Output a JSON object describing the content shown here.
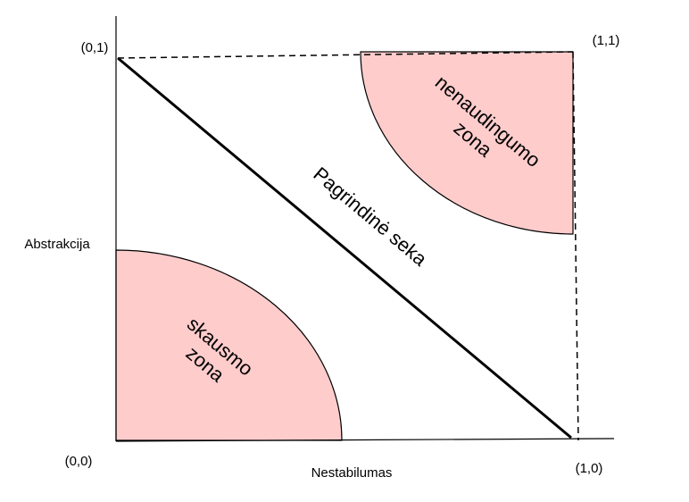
{
  "diagram": {
    "corner_labels": {
      "origin": "(0,0)",
      "top_left": "(0,1)",
      "top_right": "(1,1)",
      "bottom_right": "(1,0)"
    },
    "x_axis_label": "Nestabilumas",
    "y_axis_label": "Abstrakcija",
    "main_sequence_label": "Pagrindinė seka",
    "zone_of_uselessness": {
      "line1": "nenaudingumo",
      "line2": "zona"
    },
    "zone_of_pain": {
      "line1": "skausmo",
      "line2": "zona"
    },
    "colors": {
      "zone_fill": "#ffcccc",
      "stroke": "#000000"
    }
  }
}
